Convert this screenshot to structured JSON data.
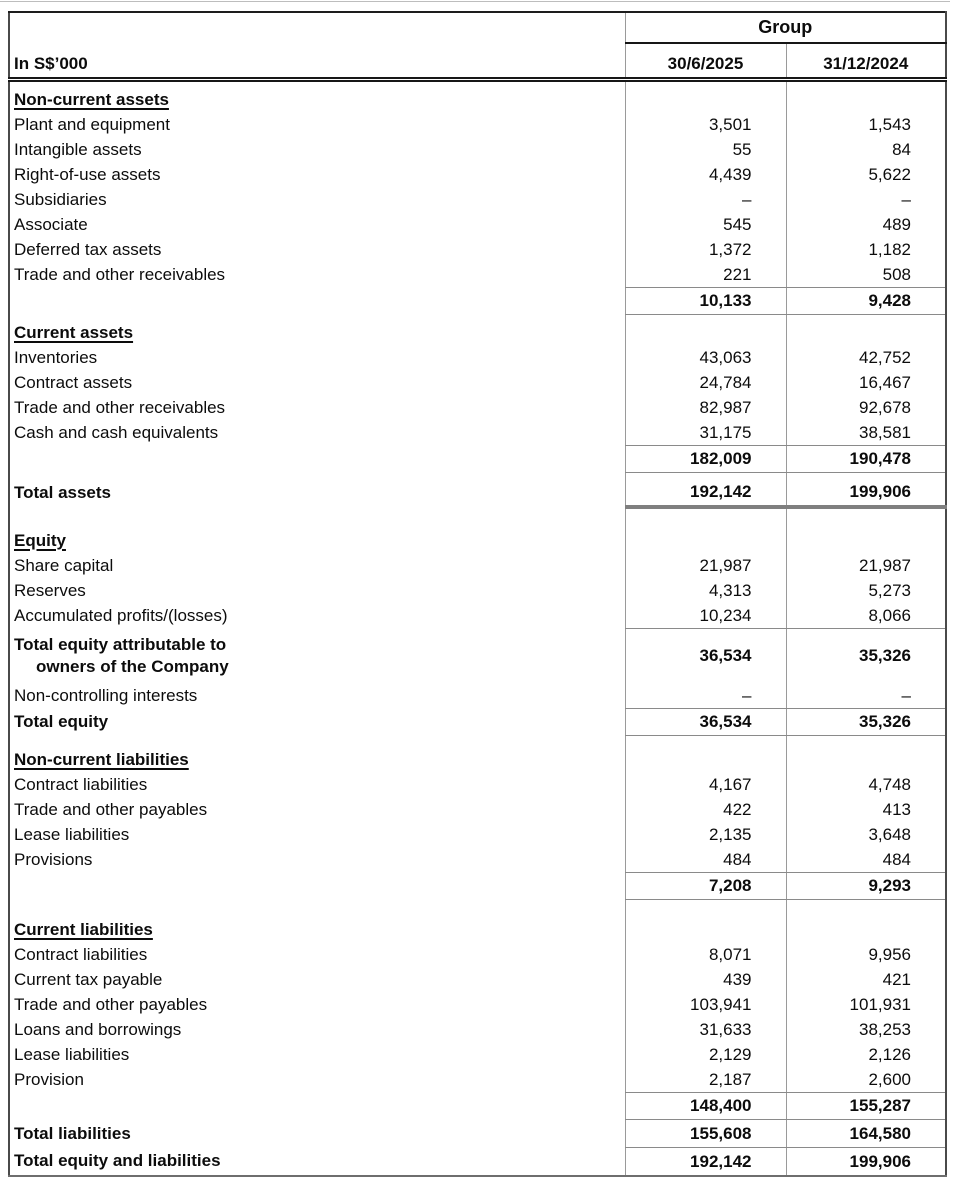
{
  "header": {
    "group": "Group",
    "unit": "In S$’000",
    "col1": "30/6/2025",
    "col2": "31/12/2024"
  },
  "rows": [
    {
      "type": "section",
      "label": "Non-current assets"
    },
    {
      "type": "item",
      "label": "Plant and equipment",
      "v1": "3,501",
      "v2": "1,543"
    },
    {
      "type": "item",
      "label": "Intangible assets",
      "v1": "55",
      "v2": "84"
    },
    {
      "type": "item",
      "label": "Right-of-use assets",
      "v1": "4,439",
      "v2": "5,622"
    },
    {
      "type": "item",
      "label": "Subsidiaries",
      "v1": "–",
      "v2": "–"
    },
    {
      "type": "item",
      "label": "Associate",
      "v1": "545",
      "v2": "489"
    },
    {
      "type": "item",
      "label": "Deferred tax assets",
      "v1": "1,372",
      "v2": "1,182"
    },
    {
      "type": "item-rule",
      "label": "Trade and other receivables",
      "v1": "221",
      "v2": "508"
    },
    {
      "type": "subtotal",
      "label": "",
      "v1": "10,133",
      "v2": "9,428"
    },
    {
      "type": "section",
      "label": "Current assets"
    },
    {
      "type": "item",
      "label": "Inventories",
      "v1": "43,063",
      "v2": "42,752"
    },
    {
      "type": "item",
      "label": "Contract assets",
      "v1": "24,784",
      "v2": "16,467"
    },
    {
      "type": "item",
      "label": "Trade and other receivables",
      "v1": "82,987",
      "v2": "92,678"
    },
    {
      "type": "item-rule",
      "label": "Cash and cash equivalents",
      "v1": "31,175",
      "v2": "38,581"
    },
    {
      "type": "subtotal",
      "label": "",
      "v1": "182,009",
      "v2": "190,478"
    },
    {
      "type": "grand-total",
      "label": "Total assets",
      "v1": "192,142",
      "v2": "199,906"
    },
    {
      "type": "section",
      "label": "Equity"
    },
    {
      "type": "item",
      "label": "Share capital",
      "v1": "21,987",
      "v2": "21,987"
    },
    {
      "type": "item",
      "label": "Reserves",
      "v1": "4,313",
      "v2": "5,273"
    },
    {
      "type": "item-rule",
      "label": "Accumulated profits/(losses)",
      "v1": "10,234",
      "v2": "8,066"
    },
    {
      "type": "total-2line",
      "label": "Total equity attributable to",
      "label2": "owners of the Company",
      "v1": "36,534",
      "v2": "35,326"
    },
    {
      "type": "item-rule",
      "label": "Non-controlling interests",
      "v1": "–",
      "v2": "–"
    },
    {
      "type": "total",
      "label": "Total equity",
      "v1": "36,534",
      "v2": "35,326"
    },
    {
      "type": "section",
      "label": "Non-current liabilities"
    },
    {
      "type": "item",
      "label": "Contract liabilities",
      "v1": "4,167",
      "v2": "4,748"
    },
    {
      "type": "item",
      "label": "Trade and other payables",
      "v1": "422",
      "v2": "413"
    },
    {
      "type": "item",
      "label": "Lease liabilities",
      "v1": "2,135",
      "v2": "3,648"
    },
    {
      "type": "item-rule",
      "label": "Provisions",
      "v1": "484",
      "v2": "484"
    },
    {
      "type": "subtotal",
      "label": "",
      "v1": "7,208",
      "v2": "9,293"
    },
    {
      "type": "section",
      "label": "Current liabilities"
    },
    {
      "type": "item",
      "label": "Contract liabilities",
      "v1": "8,071",
      "v2": "9,956"
    },
    {
      "type": "item",
      "label": "Current tax payable",
      "v1": "439",
      "v2": "421"
    },
    {
      "type": "item",
      "label": "Trade and other payables",
      "v1": "103,941",
      "v2": "101,931"
    },
    {
      "type": "item",
      "label": "Loans and borrowings",
      "v1": "31,633",
      "v2": "38,253"
    },
    {
      "type": "item",
      "label": "Lease liabilities",
      "v1": "2,129",
      "v2": "2,126"
    },
    {
      "type": "item-rule",
      "label": "Provision",
      "v1": "2,187",
      "v2": "2,600"
    },
    {
      "type": "subtotal",
      "label": "",
      "v1": "148,400",
      "v2": "155,287"
    },
    {
      "type": "total",
      "label": "Total liabilities",
      "v1": "155,608",
      "v2": "164,580"
    },
    {
      "type": "total-end",
      "label": "Total equity and liabilities",
      "v1": "192,142",
      "v2": "199,906"
    }
  ]
}
